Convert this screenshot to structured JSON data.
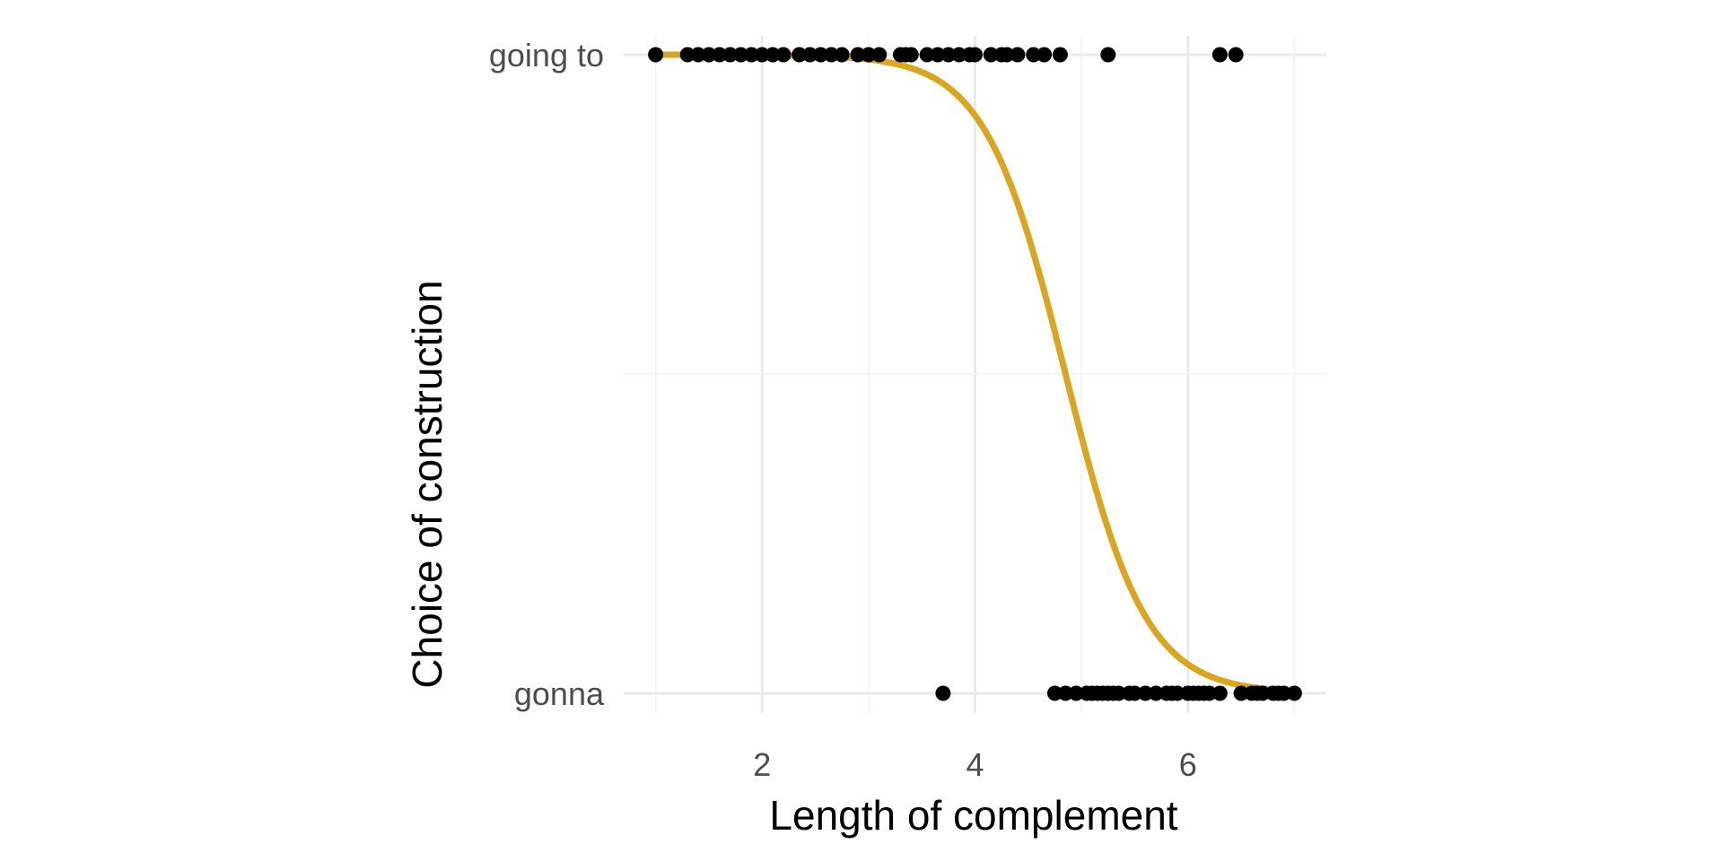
{
  "chart_data": {
    "type": "scatter",
    "xlabel": "Length of complement",
    "ylabel": "Choice of construction",
    "xlim": [
      0.7,
      7.3
    ],
    "x_ticks": [
      2,
      4,
      6
    ],
    "x_tick_labels": [
      "2",
      "4",
      "6"
    ],
    "y_categories": [
      "gonna",
      "going to"
    ],
    "grid": true,
    "legend": "none",
    "colors": {
      "points": "#000000",
      "curve": "#DAA520",
      "grid": "#ebebeb"
    },
    "series": [
      {
        "category": "going to",
        "x": [
          1.0,
          1.3,
          1.4,
          1.5,
          1.6,
          1.7,
          1.8,
          1.9,
          2.0,
          2.1,
          2.2,
          2.35,
          2.45,
          2.55,
          2.65,
          2.75,
          2.9,
          3.0,
          3.1,
          3.3,
          3.35,
          3.4,
          3.55,
          3.65,
          3.75,
          3.85,
          3.95,
          4.0,
          4.15,
          4.25,
          4.3,
          4.4,
          4.55,
          4.65,
          4.8,
          5.25,
          6.3,
          6.45
        ]
      },
      {
        "category": "gonna",
        "x": [
          3.7,
          4.75,
          4.85,
          4.95,
          5.05,
          5.1,
          5.15,
          5.2,
          5.25,
          5.3,
          5.35,
          5.45,
          5.5,
          5.6,
          5.7,
          5.8,
          5.85,
          5.9,
          6.0,
          6.05,
          6.1,
          6.15,
          6.2,
          6.3,
          6.5,
          6.6,
          6.65,
          6.7,
          6.8,
          6.85,
          6.9,
          7.0
        ]
      }
    ],
    "fitted_curve": {
      "type": "logistic",
      "description": "probability of going to",
      "midpoint": 4.85,
      "slope": 2.65,
      "x_range": [
        1.0,
        7.0
      ]
    }
  }
}
